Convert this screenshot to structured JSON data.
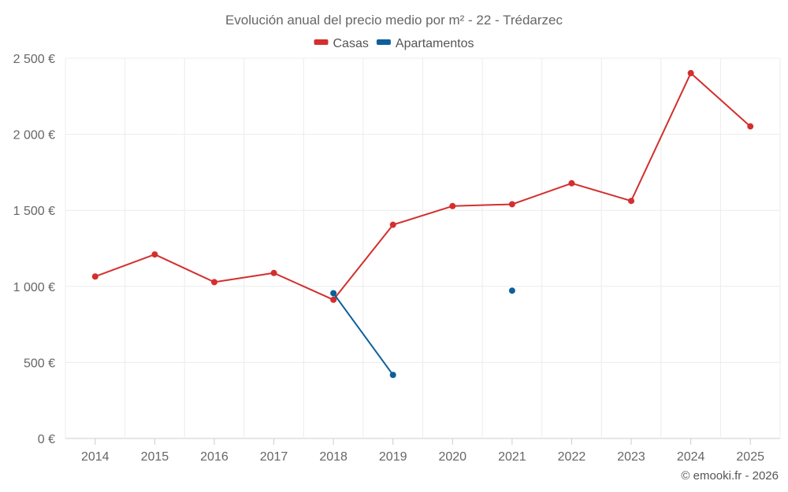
{
  "chart_data": {
    "type": "line",
    "title": "Evolución anual del precio medio por m² - 22 - Trédarzec",
    "categories": [
      "2014",
      "2015",
      "2016",
      "2017",
      "2018",
      "2019",
      "2020",
      "2021",
      "2022",
      "2023",
      "2024",
      "2025"
    ],
    "series": [
      {
        "name": "Casas",
        "color": "#d32f2f",
        "values": [
          1065,
          1210,
          1028,
          1088,
          912,
          1405,
          1528,
          1540,
          1678,
          1562,
          2402,
          2052
        ]
      },
      {
        "name": "Apartamentos",
        "color": "#0d5f9a",
        "values": [
          null,
          null,
          null,
          null,
          955,
          418,
          null,
          972,
          null,
          null,
          null,
          null
        ]
      }
    ],
    "ylim": [
      0,
      2500
    ],
    "yticks": [
      0,
      500,
      1000,
      1500,
      2000,
      2500
    ],
    "ytick_labels": [
      "0 €",
      "500 €",
      "1 000 €",
      "1 500 €",
      "2 000 €",
      "2 500 €"
    ],
    "xlabel": "",
    "ylabel": "",
    "grid": true,
    "legend_position": "top-center"
  },
  "credit": "© emooki.fr - 2026"
}
